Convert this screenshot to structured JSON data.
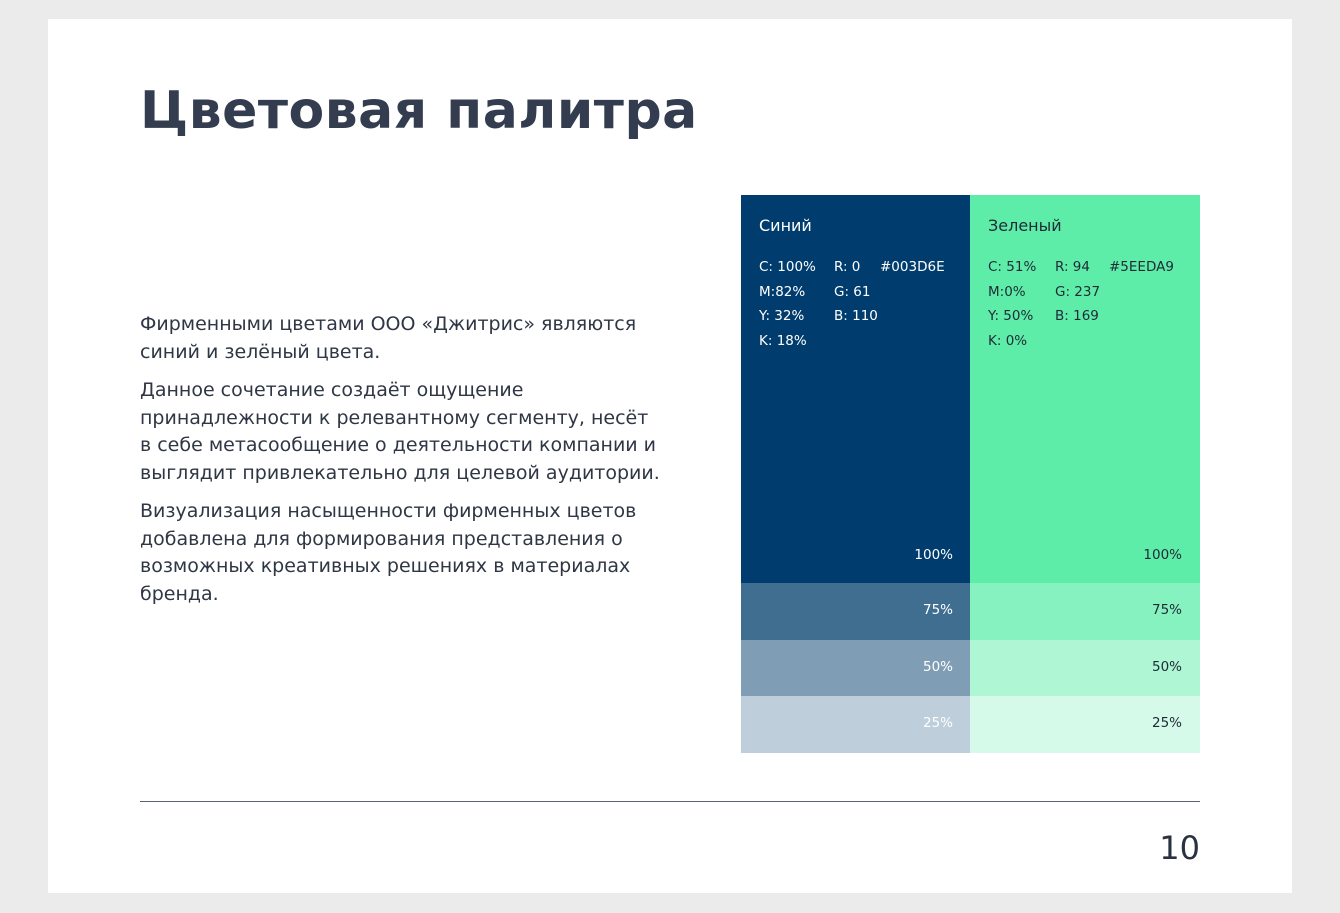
{
  "title": "Цветовая палитра",
  "paragraphs": [
    "Фирменными цветами ООО «Джитрис» являются синий и зелёный цвета.",
    "Данное сочетание создаёт ощущение принадлежности к релевантному сегменту, несёт в себе метасообщение о деятельности компании и выглядит привлекательно для целевой аудитории.",
    "Визуализация насыщенности фирменных цветов добавлена для формирования представления о возможных креативных решениях в материалах бренда."
  ],
  "palettes": [
    {
      "name": "Синий",
      "cmyk": [
        "C: 100%",
        "M:82%",
        "Y:  32%",
        "K: 18%"
      ],
      "rgb": [
        "R: 0",
        "G: 61",
        "B: 110"
      ],
      "hex": "#003D6E",
      "colors": [
        "#003d6e",
        "#406e91",
        "#7f9eb6",
        "#bfcedb"
      ],
      "tints": [
        "100%",
        "75%",
        "50%",
        "25%"
      ]
    },
    {
      "name": "Зеленый",
      "cmyk": [
        "C: 51%",
        "M:0%",
        "Y:  50%",
        "K: 0%"
      ],
      "rgb": [
        "R: 94",
        "G: 237",
        "B: 169"
      ],
      "hex": "#5EEDA9",
      "colors": [
        "#5eeda9",
        "#86f2bf",
        "#aef6d4",
        "#d6faea"
      ],
      "tints": [
        "100%",
        "75%",
        "50%",
        "25%"
      ]
    }
  ],
  "page_number": "10"
}
